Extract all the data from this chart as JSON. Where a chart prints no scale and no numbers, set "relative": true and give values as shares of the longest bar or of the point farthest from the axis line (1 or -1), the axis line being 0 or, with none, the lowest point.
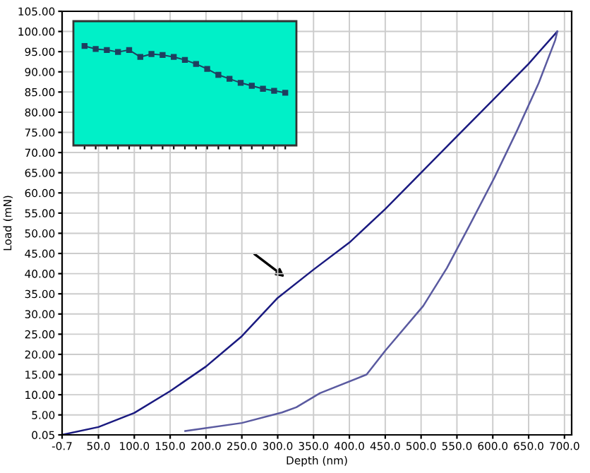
{
  "chart_data": [
    {
      "type": "line",
      "xlabel": "Depth (nm)",
      "ylabel": "Load (mN)",
      "grid": true,
      "marker": "none",
      "line_style": "solid",
      "xlim": [
        -0.7,
        710
      ],
      "ylim": [
        0.05,
        105
      ],
      "xticks": [
        {
          "value": -0.7,
          "label": "-0.7"
        },
        {
          "value": 50,
          "label": "50.0"
        },
        {
          "value": 100,
          "label": "100.0"
        },
        {
          "value": 150,
          "label": "150.0"
        },
        {
          "value": 200,
          "label": "200.0"
        },
        {
          "value": 250,
          "label": "250.0"
        },
        {
          "value": 300,
          "label": "300.0"
        },
        {
          "value": 350,
          "label": "350.0"
        },
        {
          "value": 400,
          "label": "400.0"
        },
        {
          "value": 450,
          "label": "450.0"
        },
        {
          "value": 500,
          "label": "500.0"
        },
        {
          "value": 550,
          "label": "550.0"
        },
        {
          "value": 600,
          "label": "600.0"
        },
        {
          "value": 650,
          "label": "650.0"
        },
        {
          "value": 700,
          "label": "700.0"
        }
      ],
      "yticks": [
        {
          "value": 0.05,
          "label": "0.05"
        },
        {
          "value": 5,
          "label": "5.00"
        },
        {
          "value": 10,
          "label": "10.00"
        },
        {
          "value": 15,
          "label": "15.00"
        },
        {
          "value": 20,
          "label": "20.00"
        },
        {
          "value": 25,
          "label": "25.00"
        },
        {
          "value": 30,
          "label": "30.00"
        },
        {
          "value": 35,
          "label": "35.00"
        },
        {
          "value": 40,
          "label": "40.00"
        },
        {
          "value": 45,
          "label": "45.00"
        },
        {
          "value": 50,
          "label": "50.00"
        },
        {
          "value": 55,
          "label": "55.00"
        },
        {
          "value": 60,
          "label": "60.00"
        },
        {
          "value": 65,
          "label": "65.00"
        },
        {
          "value": 70,
          "label": "70.00"
        },
        {
          "value": 75,
          "label": "75.00"
        },
        {
          "value": 80,
          "label": "80.00"
        },
        {
          "value": 85,
          "label": "85.00"
        },
        {
          "value": 90,
          "label": "90.00"
        },
        {
          "value": 95,
          "label": "95.00"
        },
        {
          "value": 100,
          "label": "100.00"
        },
        {
          "value": 105,
          "label": "105.00"
        }
      ],
      "series": [
        {
          "color": "#1a1a80",
          "x": [
            0,
            50,
            100,
            150,
            200,
            250,
            300,
            350,
            400,
            450,
            500,
            550,
            600,
            650,
            690
          ],
          "values": [
            0.1,
            2,
            5.5,
            10.9,
            17,
            24.5,
            34,
            41,
            47.7,
            56,
            65,
            74,
            83,
            92,
            100
          ]
        },
        {
          "color": "#5a5aa0",
          "x": [
            171,
            250,
            306,
            326,
            359,
            424,
            450,
            503,
            536,
            566,
            602,
            634,
            664,
            687,
            690
          ],
          "values": [
            1,
            3,
            5.6,
            6.9,
            10.4,
            15,
            20.9,
            32,
            41.4,
            51.4,
            63.7,
            75.5,
            87.2,
            97.8,
            100
          ]
        }
      ]
    },
    {
      "type": "line",
      "relative": true,
      "tick_labels": false,
      "grid": false,
      "marker": "square",
      "line_style": "solid",
      "categories": [
        null,
        null,
        null,
        null,
        null,
        null,
        null,
        null,
        null,
        null,
        null,
        null,
        null,
        null,
        null,
        null,
        null,
        null,
        null
      ],
      "series": [
        {
          "color": "#1f3f5f",
          "values": [
            1.0,
            0.97,
            0.96,
            0.94,
            0.96,
            0.89,
            0.92,
            0.91,
            0.89,
            0.86,
            0.82,
            0.77,
            0.71,
            0.67,
            0.63,
            0.6,
            0.57,
            0.55,
            0.53
          ]
        }
      ]
    }
  ]
}
